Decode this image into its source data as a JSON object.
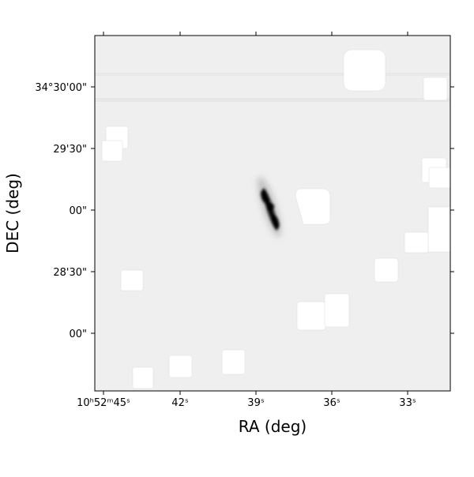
{
  "plot": {
    "xlabel": "RA (deg)",
    "ylabel": "DEC (deg)",
    "xticks": [
      "10ʰ52ᵐ45ˢ",
      "42ˢ",
      "39ˢ",
      "36ˢ",
      "33ˢ"
    ],
    "yticks": [
      "34°30'00\"",
      "29'30\"",
      "00\"",
      "28'30\"",
      "00\""
    ]
  }
}
